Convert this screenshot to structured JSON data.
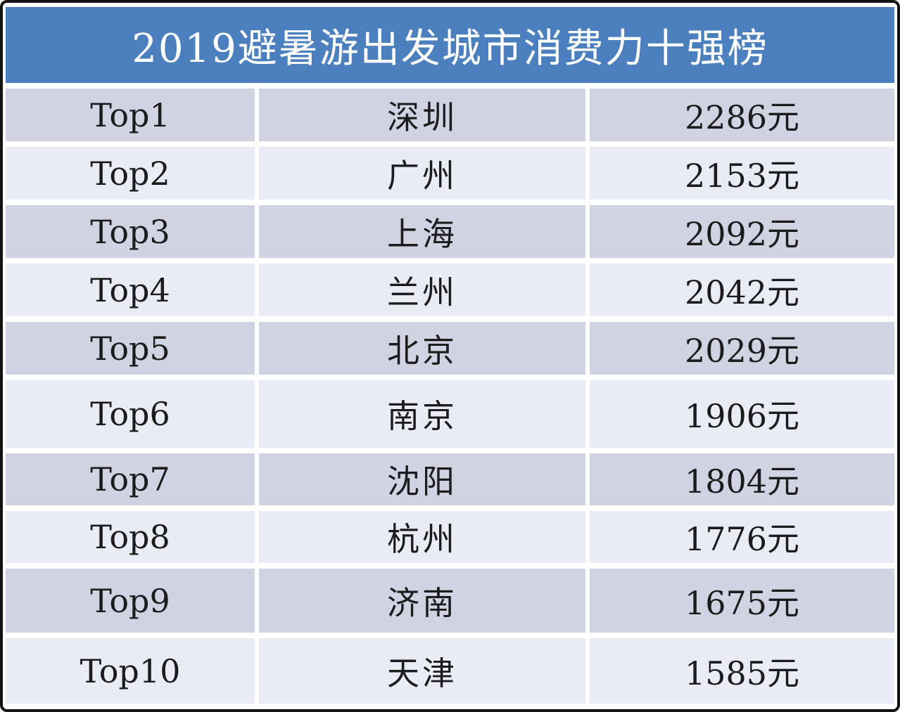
{
  "colors": {
    "header_bg": "#4b7fbe",
    "header_text": "#ffffff",
    "row_dark_bg": "#d0d4e2",
    "row_light_bg": "#e9ecf4",
    "cell_text": "#1c1c1e",
    "gutter": "#ffffff",
    "outer_border": "#141414"
  },
  "chart_data": {
    "type": "table",
    "title": "2019避暑游出发城市消费力十强榜",
    "legend": "none",
    "columns_visible_headers": [],
    "rows": [
      {
        "rank": "Top1",
        "city": "深圳",
        "value": "2286元"
      },
      {
        "rank": "Top2",
        "city": "广州",
        "value": "2153元"
      },
      {
        "rank": "Top3",
        "city": "上海",
        "value": "2092元"
      },
      {
        "rank": "Top4",
        "city": "兰州",
        "value": "2042元"
      },
      {
        "rank": "Top5",
        "city": "北京",
        "value": "2029元"
      },
      {
        "rank": "Top6",
        "city": "南京",
        "value": "1906元"
      },
      {
        "rank": "Top7",
        "city": "沈阳",
        "value": "1804元"
      },
      {
        "rank": "Top8",
        "city": "杭州",
        "value": "1776元"
      },
      {
        "rank": "Top9",
        "city": "济南",
        "value": "1675元"
      },
      {
        "rank": "Top10",
        "city": "天津",
        "value": "1585元"
      }
    ],
    "values_numeric": [
      2286,
      2153,
      2092,
      2042,
      2029,
      1906,
      1804,
      1776,
      1675,
      1585
    ],
    "value_unit": "元"
  }
}
